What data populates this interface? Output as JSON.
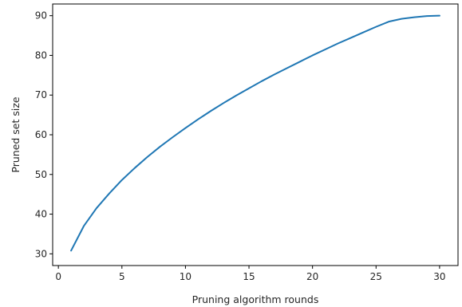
{
  "chart_data": {
    "type": "line",
    "title": "",
    "xlabel": "Pruning algorithm rounds",
    "ylabel": "Pruned set size",
    "xlim": [
      -0.45,
      31.45
    ],
    "ylim": [
      27.05,
      92.95
    ],
    "xticks": [
      0,
      5,
      10,
      15,
      20,
      25,
      30
    ],
    "yticks": [
      30,
      40,
      50,
      60,
      70,
      80,
      90
    ],
    "grid": false,
    "legend": "none",
    "series": [
      {
        "color": "#1f77b4",
        "x": [
          1,
          2,
          3,
          4,
          5,
          6,
          7,
          8,
          9,
          10,
          11,
          12,
          13,
          14,
          15,
          16,
          17,
          18,
          19,
          20,
          21,
          22,
          23,
          24,
          25,
          26,
          27,
          28,
          29,
          30
        ],
        "y": [
          30.8,
          37.0,
          41.5,
          45.2,
          48.6,
          51.6,
          54.4,
          57.0,
          59.4,
          61.7,
          63.9,
          66.0,
          68.0,
          69.9,
          71.7,
          73.5,
          75.2,
          76.8,
          78.4,
          80.0,
          81.5,
          83.0,
          84.4,
          85.8,
          87.2,
          88.5,
          89.2,
          89.6,
          89.9,
          90.0
        ]
      }
    ]
  }
}
